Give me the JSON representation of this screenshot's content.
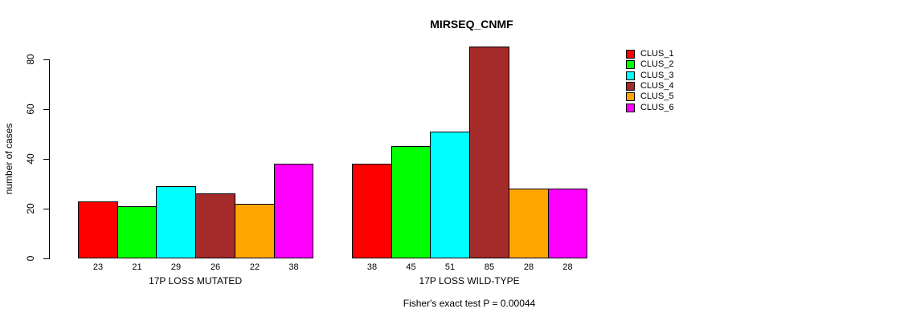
{
  "chart_data": {
    "type": "bar",
    "title": "MIRSEQ_CNMF",
    "ylabel": "number of cases",
    "ylim": [
      0,
      80
    ],
    "yticks": [
      0,
      20,
      40,
      60,
      80
    ],
    "grid": false,
    "legend_position": "right",
    "categories": [
      "17P LOSS MUTATED",
      "17P LOSS WILD-TYPE"
    ],
    "series": [
      {
        "name": "CLUS_1",
        "color": "#ff0000",
        "values": [
          23,
          38
        ]
      },
      {
        "name": "CLUS_2",
        "color": "#00ff00",
        "values": [
          21,
          45
        ]
      },
      {
        "name": "CLUS_3",
        "color": "#00ffff",
        "values": [
          29,
          51
        ]
      },
      {
        "name": "CLUS_4",
        "color": "#a52a2a",
        "values": [
          26,
          85
        ]
      },
      {
        "name": "CLUS_5",
        "color": "#ffa500",
        "values": [
          22,
          28
        ]
      },
      {
        "name": "CLUS_6",
        "color": "#ff00ff",
        "values": [
          38,
          28
        ]
      }
    ],
    "bar_value_labels": [
      [
        23,
        21,
        29,
        26,
        22,
        38
      ],
      [
        38,
        45,
        51,
        85,
        28,
        28
      ]
    ],
    "annotation": "Fisher's exact test P = 0.00044"
  }
}
